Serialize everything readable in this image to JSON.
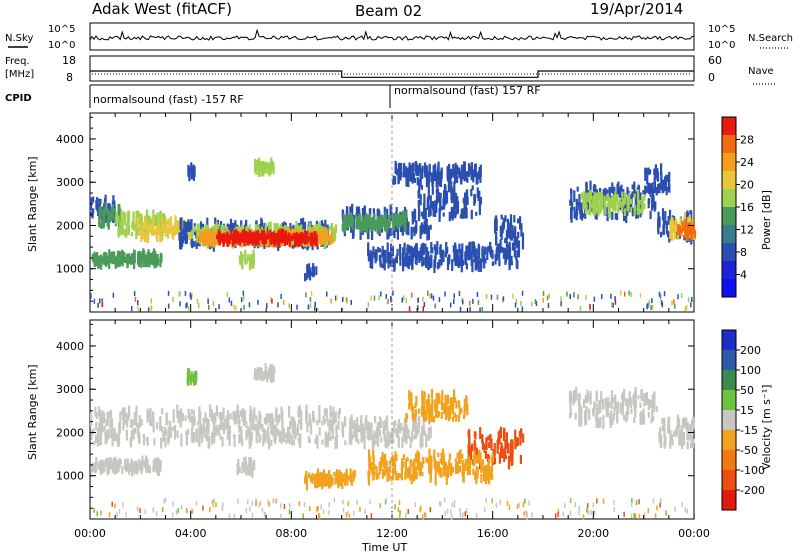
{
  "header": {
    "station": "Adak West (fitACF)",
    "beam": "Beam 02",
    "date": "19/Apr/2014"
  },
  "panels": {
    "nsky": {
      "label": "N.Sky",
      "tick_high": "10^5",
      "tick_low": "10^0",
      "right_label": "N.Search"
    },
    "freq": {
      "label": "Freq.",
      "unit": "[MHz]",
      "ticks_left": [
        "18",
        "8"
      ],
      "ticks_right": [
        "60",
        "0"
      ],
      "right_label": "Nave"
    },
    "cpid": {
      "label": "CPID",
      "segments": [
        "normalsound (fast) -157 RF",
        "normalsound (fast) 157 RF"
      ]
    }
  },
  "chart_data": [
    {
      "type": "heatmap",
      "panel": "power",
      "ylabel": "Slant Range [km]",
      "xlabel": "Time UT",
      "xticks": [
        "00:00",
        "04:00",
        "08:00",
        "12:00",
        "16:00",
        "20:00",
        "00:00"
      ],
      "xlim_hours": [
        0,
        24
      ],
      "ylim": [
        0,
        4600
      ],
      "yticks": [
        1000,
        2000,
        3000,
        4000
      ],
      "colorbar": {
        "label": "Power [dB]",
        "ticks": [
          "28",
          "24",
          "20",
          "16",
          "12",
          "8",
          "4"
        ],
        "colors": [
          "#e8190f",
          "#f36a12",
          "#f89c1b",
          "#e9c63a",
          "#9fd14f",
          "#4a9a5a",
          "#3a7d8a",
          "#2a4fb0",
          "#1c23d8",
          "#0f10f0"
        ]
      }
    },
    {
      "type": "heatmap",
      "panel": "velocity",
      "ylabel": "Slant Range [km]",
      "xlabel": "Time UT",
      "xticks": [
        "00:00",
        "04:00",
        "08:00",
        "12:00",
        "16:00",
        "20:00",
        "00:00"
      ],
      "xlim_hours": [
        0,
        24
      ],
      "ylim": [
        0,
        4600
      ],
      "yticks": [
        1000,
        2000,
        3000,
        4000
      ],
      "colorbar": {
        "label": "Velocity [m s⁻¹]",
        "ticks": [
          "200",
          "100",
          "50",
          "15",
          "-15",
          "-50",
          "-100",
          "-200"
        ],
        "colors": [
          "#1a2fc8",
          "#2b5aa8",
          "#3a8c4e",
          "#6cc23a",
          "#c7c7c2",
          "#f2a21d",
          "#f07a12",
          "#ec4d10",
          "#e21a0e"
        ]
      }
    }
  ],
  "scatter_bands": {
    "power": [
      {
        "t0": 0.0,
        "t1": 1.0,
        "r0": 2150,
        "r1": 2600,
        "c": "#2a4fb0"
      },
      {
        "t0": 0.3,
        "t1": 1.2,
        "r0": 1950,
        "r1": 2400,
        "c": "#4a9a5a"
      },
      {
        "t0": 1.0,
        "t1": 3.0,
        "r0": 1800,
        "r1": 2250,
        "c": "#9fd14f"
      },
      {
        "t0": 1.8,
        "t1": 4.0,
        "r0": 1700,
        "r1": 2100,
        "c": "#e9c63a"
      },
      {
        "t0": 3.5,
        "t1": 9.5,
        "r0": 1550,
        "r1": 2050,
        "c": "#2a4fb0"
      },
      {
        "t0": 4.0,
        "t1": 9.8,
        "r0": 1600,
        "r1": 1950,
        "c": "#9fd14f"
      },
      {
        "t0": 4.3,
        "t1": 9.6,
        "r0": 1620,
        "r1": 1820,
        "c": "#f89c1b"
      },
      {
        "t0": 5.0,
        "t1": 9.0,
        "r0": 1650,
        "r1": 1780,
        "c": "#e8190f"
      },
      {
        "t0": 0.0,
        "t1": 2.8,
        "r0": 1130,
        "r1": 1320,
        "c": "#4a9a5a"
      },
      {
        "t0": 5.9,
        "t1": 6.5,
        "r0": 1100,
        "r1": 1300,
        "c": "#9fd14f"
      },
      {
        "t0": 3.8,
        "t1": 4.2,
        "r0": 3150,
        "r1": 3350,
        "c": "#2a4fb0"
      },
      {
        "t0": 6.5,
        "t1": 7.3,
        "r0": 3250,
        "r1": 3450,
        "c": "#9fd14f"
      },
      {
        "t0": 8.5,
        "t1": 9.0,
        "r0": 800,
        "r1": 1000,
        "c": "#2a4fb0"
      },
      {
        "t0": 10.0,
        "t1": 13.5,
        "r0": 1800,
        "r1": 2350,
        "c": "#2a4fb0"
      },
      {
        "t0": 10.0,
        "t1": 12.5,
        "r0": 1950,
        "r1": 2200,
        "c": "#4a9a5a"
      },
      {
        "t0": 13.0,
        "t1": 15.5,
        "r0": 2200,
        "r1": 2900,
        "c": "#2a4fb0"
      },
      {
        "t0": 12.0,
        "t1": 15.5,
        "r0": 3000,
        "r1": 3350,
        "c": "#2a4fb0"
      },
      {
        "t0": 11.0,
        "t1": 17.0,
        "r0": 1050,
        "r1": 1500,
        "c": "#2a4fb0"
      },
      {
        "t0": 16.0,
        "t1": 17.2,
        "r0": 1500,
        "r1": 2200,
        "c": "#2a4fb0"
      },
      {
        "t0": 19.0,
        "t1": 22.5,
        "r0": 2200,
        "r1": 2900,
        "c": "#2a4fb0"
      },
      {
        "t0": 19.5,
        "t1": 22.0,
        "r0": 2300,
        "r1": 2700,
        "c": "#9fd14f"
      },
      {
        "t0": 22.5,
        "t1": 24.0,
        "r0": 1700,
        "r1": 2300,
        "c": "#2a4fb0"
      },
      {
        "t0": 23.0,
        "t1": 24.0,
        "r0": 1750,
        "r1": 2150,
        "c": "#e9c63a"
      },
      {
        "t0": 23.3,
        "t1": 24.0,
        "r0": 1780,
        "r1": 2000,
        "c": "#f36a12"
      },
      {
        "t0": 22.0,
        "t1": 23.0,
        "r0": 2800,
        "r1": 3300,
        "c": "#2a4fb0"
      }
    ],
    "velocity": [
      {
        "t0": 0.0,
        "t1": 10.0,
        "r0": 1750,
        "r1": 2500,
        "c": "#c7c7c2"
      },
      {
        "t0": 0.0,
        "t1": 2.8,
        "r0": 1130,
        "r1": 1320,
        "c": "#c7c7c2"
      },
      {
        "t0": 5.8,
        "t1": 6.5,
        "r0": 1100,
        "r1": 1300,
        "c": "#c7c7c2"
      },
      {
        "t0": 10.0,
        "t1": 13.5,
        "r0": 1750,
        "r1": 2300,
        "c": "#c7c7c2"
      },
      {
        "t0": 12.5,
        "t1": 15.0,
        "r0": 2300,
        "r1": 2900,
        "c": "#f2a21d"
      },
      {
        "t0": 15.0,
        "t1": 17.2,
        "r0": 1300,
        "r1": 2000,
        "c": "#ec4d10"
      },
      {
        "t0": 11.0,
        "t1": 16.0,
        "r0": 900,
        "r1": 1500,
        "c": "#f2a21d"
      },
      {
        "t0": 8.5,
        "t1": 10.5,
        "r0": 800,
        "r1": 1050,
        "c": "#f2a21d"
      },
      {
        "t0": 19.0,
        "t1": 22.5,
        "r0": 2200,
        "r1": 2900,
        "c": "#c7c7c2"
      },
      {
        "t0": 22.5,
        "t1": 24.0,
        "r0": 1700,
        "r1": 2300,
        "c": "#c7c7c2"
      },
      {
        "t0": 3.8,
        "t1": 4.2,
        "r0": 3150,
        "r1": 3350,
        "c": "#6cc23a"
      },
      {
        "t0": 6.5,
        "t1": 7.3,
        "r0": 3250,
        "r1": 3450,
        "c": "#c7c7c2"
      }
    ]
  },
  "time_series": {
    "nsky_baseline": 0.25,
    "freq_mhz": [
      {
        "t0": 0.0,
        "t1": 10.0,
        "v": 12.0
      },
      {
        "t0": 10.0,
        "t1": 17.8,
        "v": 9.5
      },
      {
        "t0": 17.8,
        "t1": 24.0,
        "v": 12.0
      }
    ],
    "cpid_change_hour": 12.0
  }
}
